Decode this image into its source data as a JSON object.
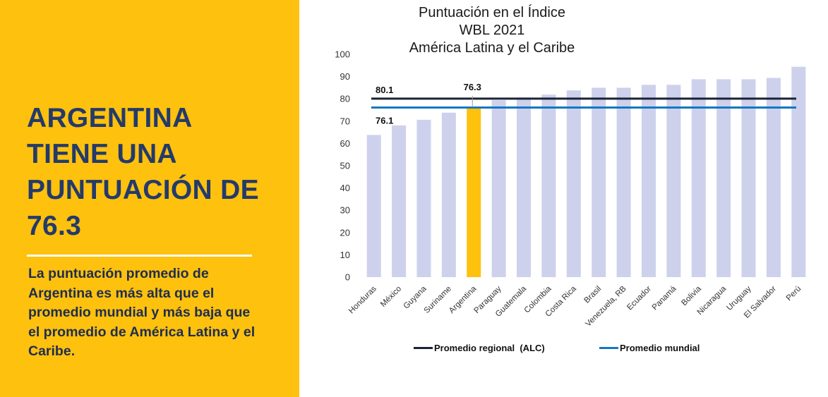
{
  "left_panel": {
    "headline": "ARGENTINA TIENE UNA PUNTUACIÓN DE 76.3",
    "summary": "La puntuación promedio de Argentina es más alta que el promedio mundial y más baja que el promedio de América Latina y el Caribe."
  },
  "colors": {
    "panel_background": "#FDC10E",
    "headline_text": "#243A6A",
    "bar_default": "#CDD1EC",
    "bar_highlight": "#FDC10E",
    "regional_line": "#1B2335",
    "world_line": "#1577C2"
  },
  "chart_data": {
    "type": "bar",
    "title": "Puntuación en el Índice WBL 2021",
    "subtitle": "América Latina y el Caribe",
    "xlabel": "",
    "ylabel": "",
    "ylim": [
      0,
      100
    ],
    "yticks": [
      0,
      10,
      20,
      30,
      40,
      50,
      60,
      70,
      80,
      90,
      100
    ],
    "grid": false,
    "legend_position": "bottom",
    "categories": [
      "Honduras",
      "México",
      "Guyana",
      "Suriname",
      "Argentina",
      "Paraguay",
      "Guatemala",
      "Colombia",
      "Costa Rica",
      "Brasil",
      "Venezuela, RB",
      "Ecuador",
      "Panamá",
      "Bolivia",
      "Nicaragua",
      "Uruguay",
      "El Salvador",
      "Perú"
    ],
    "values": [
      63.8,
      68.1,
      70.6,
      73.8,
      76.3,
      79.4,
      80.6,
      81.9,
      83.8,
      85.0,
      85.0,
      86.3,
      86.3,
      88.8,
      88.8,
      88.8,
      89.4,
      94.4
    ],
    "highlight": "Argentina",
    "highlight_label": "76.3",
    "reference_lines": [
      {
        "name": "Promedio regional  (ALC)",
        "value": 80.1,
        "label": "80.1",
        "color": "#1B2335"
      },
      {
        "name": "Promedio mundial",
        "value": 76.1,
        "label": "76.1",
        "color": "#1577C2"
      }
    ]
  }
}
